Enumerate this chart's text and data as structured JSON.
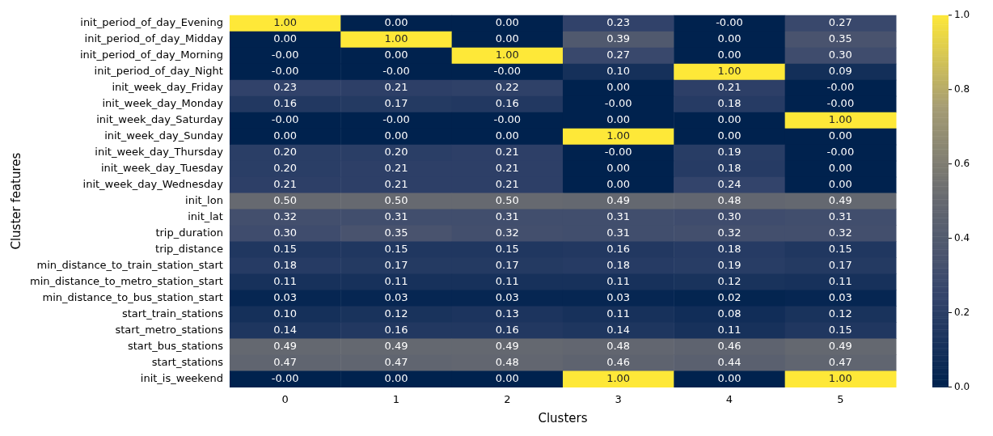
{
  "chart_data": {
    "type": "heatmap",
    "xlabel": "Clusters",
    "ylabel": "Cluster features",
    "categories": [
      "0",
      "1",
      "2",
      "3",
      "4",
      "5"
    ],
    "y_categories": [
      "init_period_of_day_Evening",
      "init_period_of_day_Midday",
      "init_period_of_day_Morning",
      "init_period_of_day_Night",
      "init_week_day_Friday",
      "init_week_day_Monday",
      "init_week_day_Saturday",
      "init_week_day_Sunday",
      "init_week_day_Thursday",
      "init_week_day_Tuesday",
      "init_week_day_Wednesday",
      "init_lon",
      "init_lat",
      "trip_duration",
      "trip_distance",
      "min_distance_to_train_station_start",
      "min_distance_to_metro_station_start",
      "min_distance_to_bus_station_start",
      "start_train_stations",
      "start_metro_stations",
      "start_bus_stations",
      "start_stations",
      "init_is_weekend"
    ],
    "cells": [
      [
        1.0,
        0.0,
        0.0,
        0.23,
        0.0,
        0.27
      ],
      [
        0.0,
        1.0,
        0.0,
        0.39,
        0.0,
        0.35
      ],
      [
        0.0,
        0.0,
        1.0,
        0.27,
        0.0,
        0.3
      ],
      [
        0.0,
        0.0,
        0.0,
        0.1,
        1.0,
        0.09
      ],
      [
        0.23,
        0.21,
        0.22,
        0.0,
        0.21,
        0.0
      ],
      [
        0.16,
        0.17,
        0.16,
        0.0,
        0.18,
        0.0
      ],
      [
        0.0,
        0.0,
        0.0,
        0.0,
        0.0,
        1.0
      ],
      [
        0.0,
        0.0,
        0.0,
        1.0,
        0.0,
        0.0
      ],
      [
        0.2,
        0.2,
        0.21,
        0.0,
        0.19,
        0.0
      ],
      [
        0.2,
        0.21,
        0.21,
        0.0,
        0.18,
        0.0
      ],
      [
        0.21,
        0.21,
        0.21,
        0.0,
        0.24,
        0.0
      ],
      [
        0.5,
        0.5,
        0.5,
        0.49,
        0.48,
        0.49
      ],
      [
        0.32,
        0.31,
        0.31,
        0.31,
        0.3,
        0.31
      ],
      [
        0.3,
        0.35,
        0.32,
        0.31,
        0.32,
        0.32
      ],
      [
        0.15,
        0.15,
        0.15,
        0.16,
        0.18,
        0.15
      ],
      [
        0.18,
        0.17,
        0.17,
        0.18,
        0.19,
        0.17
      ],
      [
        0.11,
        0.11,
        0.11,
        0.11,
        0.12,
        0.11
      ],
      [
        0.03,
        0.03,
        0.03,
        0.03,
        0.02,
        0.03
      ],
      [
        0.1,
        0.12,
        0.13,
        0.11,
        0.08,
        0.12
      ],
      [
        0.14,
        0.16,
        0.16,
        0.14,
        0.11,
        0.15
      ],
      [
        0.49,
        0.49,
        0.49,
        0.48,
        0.46,
        0.49
      ],
      [
        0.47,
        0.47,
        0.48,
        0.46,
        0.44,
        0.47
      ],
      [
        0.0,
        0.0,
        0.0,
        1.0,
        0.0,
        1.0
      ]
    ],
    "cell_labels": [
      [
        "1.00",
        "0.00",
        "0.00",
        "0.23",
        "-0.00",
        "0.27"
      ],
      [
        "0.00",
        "1.00",
        "0.00",
        "0.39",
        "0.00",
        "0.35"
      ],
      [
        "-0.00",
        "0.00",
        "1.00",
        "0.27",
        "0.00",
        "0.30"
      ],
      [
        "-0.00",
        "-0.00",
        "-0.00",
        "0.10",
        "1.00",
        "0.09"
      ],
      [
        "0.23",
        "0.21",
        "0.22",
        "0.00",
        "0.21",
        "-0.00"
      ],
      [
        "0.16",
        "0.17",
        "0.16",
        "-0.00",
        "0.18",
        "-0.00"
      ],
      [
        "-0.00",
        "-0.00",
        "-0.00",
        "0.00",
        "0.00",
        "1.00"
      ],
      [
        "0.00",
        "0.00",
        "0.00",
        "1.00",
        "0.00",
        "0.00"
      ],
      [
        "0.20",
        "0.20",
        "0.21",
        "-0.00",
        "0.19",
        "-0.00"
      ],
      [
        "0.20",
        "0.21",
        "0.21",
        "0.00",
        "0.18",
        "0.00"
      ],
      [
        "0.21",
        "0.21",
        "0.21",
        "0.00",
        "0.24",
        "0.00"
      ],
      [
        "0.50",
        "0.50",
        "0.50",
        "0.49",
        "0.48",
        "0.49"
      ],
      [
        "0.32",
        "0.31",
        "0.31",
        "0.31",
        "0.30",
        "0.31"
      ],
      [
        "0.30",
        "0.35",
        "0.32",
        "0.31",
        "0.32",
        "0.32"
      ],
      [
        "0.15",
        "0.15",
        "0.15",
        "0.16",
        "0.18",
        "0.15"
      ],
      [
        "0.18",
        "0.17",
        "0.17",
        "0.18",
        "0.19",
        "0.17"
      ],
      [
        "0.11",
        "0.11",
        "0.11",
        "0.11",
        "0.12",
        "0.11"
      ],
      [
        "0.03",
        "0.03",
        "0.03",
        "0.03",
        "0.02",
        "0.03"
      ],
      [
        "0.10",
        "0.12",
        "0.13",
        "0.11",
        "0.08",
        "0.12"
      ],
      [
        "0.14",
        "0.16",
        "0.16",
        "0.14",
        "0.11",
        "0.15"
      ],
      [
        "0.49",
        "0.49",
        "0.49",
        "0.48",
        "0.46",
        "0.49"
      ],
      [
        "0.47",
        "0.47",
        "0.48",
        "0.46",
        "0.44",
        "0.47"
      ],
      [
        "-0.00",
        "0.00",
        "0.00",
        "1.00",
        "0.00",
        "1.00"
      ]
    ],
    "clim": [
      0,
      1
    ],
    "cticks": [
      {
        "value": 0,
        "label": "0.0"
      },
      0.2,
      0.4,
      0.6,
      0.8,
      {
        "value": 1,
        "label": "1.0"
      }
    ]
  }
}
